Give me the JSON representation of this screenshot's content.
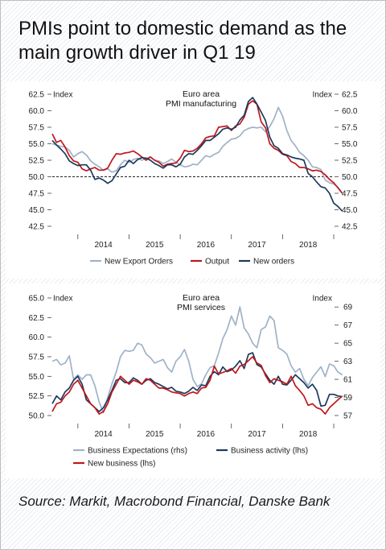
{
  "title": "PMIs point to domestic demand as the main growth driver in Q1 19",
  "source": "Source: Markit, Macrobond Financial, Danske Bank",
  "colors": {
    "light_blue": "#9fb2c8",
    "red": "#c0171c",
    "navy": "#1c3a5c"
  },
  "chart_data": [
    {
      "type": "line",
      "title": "Euro area\nPMI manufacturing",
      "left_axis_label": "Index",
      "right_axis_label": "Index",
      "ylim": [
        42.5,
        62.5
      ],
      "y_ticks": [
        "62.5",
        "60.0",
        "57.5",
        "55.0",
        "52.5",
        "50.0",
        "47.5",
        "45.0",
        "42.5"
      ],
      "x_ticks": [
        "2014",
        "2015",
        "2016",
        "2017",
        "2018"
      ],
      "x_range": [
        "2013-07",
        "2019-01"
      ],
      "reference_line": 50.0,
      "legend": [
        "New Export Orders",
        "Output",
        "New orders"
      ],
      "series": [
        {
          "name": "New Export Orders",
          "color": "#9fb2c8",
          "values": [
            55.0,
            54.8,
            54.6,
            54.5,
            54.0,
            53.0,
            53.5,
            53.8,
            53.3,
            52.4,
            51.9,
            51.5,
            51.0,
            51.2,
            50.7,
            50.9,
            51.8,
            52.5,
            52.2,
            52.6,
            52.8,
            52.5,
            52.8,
            53.0,
            52.5,
            52.4,
            52.0,
            52.3,
            52.7,
            52.2,
            51.8,
            51.5,
            51.6,
            51.9,
            51.8,
            52.5,
            53.2,
            53.0,
            53.4,
            53.7,
            54.6,
            55.2,
            55.7,
            55.8,
            56.2,
            57.0,
            57.3,
            57.5,
            57.4,
            57.5,
            56.8,
            57.6,
            58.8,
            60.5,
            59.2,
            57.0,
            55.5,
            54.7,
            53.7,
            53.2,
            52.5,
            51.5,
            51.4,
            51.1,
            49.5,
            49.1,
            48.9,
            48.4,
            47.5
          ]
        },
        {
          "name": "Output",
          "color": "#c0171c",
          "values": [
            56.5,
            55.2,
            55.5,
            54.5,
            53.2,
            52.4,
            52.2,
            51.2,
            50.9,
            51.2,
            51.4,
            51.0,
            51.0,
            51.3,
            52.5,
            53.5,
            53.4,
            53.6,
            53.7,
            53.9,
            53.5,
            53.0,
            52.5,
            53.0,
            52.5,
            52.2,
            51.6,
            51.9,
            52.0,
            52.1,
            52.8,
            54.0,
            53.8,
            53.9,
            54.3,
            55.0,
            55.9,
            56.1,
            56.2,
            57.5,
            57.6,
            57.7,
            57.0,
            57.7,
            58.0,
            59.0,
            61.0,
            61.5,
            61.0,
            58.3,
            57.4,
            55.0,
            54.3,
            54.0,
            53.4,
            53.2,
            52.3,
            52.0,
            51.4,
            51.4,
            51.2,
            50.9,
            51.0,
            50.8,
            50.3,
            49.6,
            49.1,
            48.3,
            47.5
          ]
        },
        {
          "name": "New orders",
          "color": "#1c3a5c",
          "values": [
            55.5,
            54.8,
            54.2,
            53.5,
            52.4,
            52.0,
            51.7,
            51.8,
            51.8,
            51.0,
            49.6,
            49.8,
            49.5,
            49.0,
            49.4,
            50.4,
            51.4,
            51.6,
            52.5,
            52.0,
            52.6,
            52.9,
            52.8,
            52.5,
            52.0,
            51.7,
            51.3,
            51.8,
            51.8,
            51.5,
            51.9,
            53.0,
            53.5,
            53.4,
            54.0,
            54.7,
            55.5,
            55.5,
            56.0,
            56.5,
            57.2,
            57.4,
            57.2,
            57.5,
            58.6,
            59.3,
            61.4,
            62.0,
            61.0,
            59.8,
            58.5,
            56.0,
            54.7,
            54.3,
            53.5,
            53.3,
            53.0,
            52.8,
            52.7,
            52.5,
            50.5,
            50.0,
            49.2,
            48.5,
            48.3,
            47.5,
            46.0,
            45.5,
            44.8
          ]
        }
      ]
    },
    {
      "type": "line",
      "title": "Euro area\nPMI services",
      "left_axis_label": "Index",
      "right_axis_label": "Index",
      "ylim": [
        50.0,
        65.0
      ],
      "y_ticks": [
        "65.0",
        "62.5",
        "60.0",
        "57.5",
        "55.0",
        "52.5",
        "50.0"
      ],
      "ylim_right": [
        57,
        70
      ],
      "y_ticks_right": [
        "69",
        "67",
        "65",
        "63",
        "61",
        "59",
        "57"
      ],
      "x_ticks": [
        "2014",
        "2015",
        "2016",
        "2017",
        "2018"
      ],
      "x_range": [
        "2013-07",
        "2019-01"
      ],
      "legend": [
        "Business Expectations (rhs)",
        "Business activity (lhs)",
        "New business (lhs)"
      ],
      "series": [
        {
          "name": "Business Expectations (rhs)",
          "axis": "right",
          "color": "#9fb2c8",
          "values": [
            63.0,
            63.2,
            62.6,
            62.8,
            63.6,
            61.0,
            61.5,
            61.0,
            61.5,
            61.5,
            60.3,
            58.5,
            57.3,
            59.0,
            60.5,
            61.8,
            63.5,
            64.2,
            64.1,
            64.2,
            65.0,
            64.8,
            63.8,
            63.4,
            62.8,
            63.0,
            63.2,
            62.3,
            61.8,
            63.0,
            63.5,
            64.3,
            63.0,
            61.0,
            60.2,
            60.5,
            61.5,
            62.3,
            62.5,
            63.9,
            65.5,
            66.5,
            68.0,
            67.0,
            69.0,
            66.7,
            66.0,
            65.0,
            64.5,
            66.5,
            66.8,
            68.0,
            67.5,
            64.5,
            64.2,
            63.8,
            62.5,
            61.8,
            62.2,
            61.0,
            60.3,
            61.2,
            61.8,
            62.4,
            61.3,
            62.7,
            62.5,
            61.8,
            61.5
          ]
        },
        {
          "name": "Business activity (lhs)",
          "axis": "left",
          "color": "#1c3a5c",
          "values": [
            51.5,
            52.5,
            52.0,
            53.0,
            53.5,
            54.5,
            55.0,
            54.0,
            52.0,
            51.5,
            51.0,
            50.5,
            51.0,
            52.0,
            53.2,
            54.5,
            54.7,
            54.2,
            54.2,
            54.8,
            54.5,
            54.0,
            54.5,
            54.7,
            54.2,
            54.0,
            53.7,
            53.4,
            53.6,
            53.1,
            53.0,
            52.8,
            53.1,
            53.6,
            53.2,
            53.9,
            53.8,
            55.0,
            55.6,
            55.2,
            56.2,
            55.6,
            55.8,
            56.3,
            57.0,
            56.0,
            57.8,
            58.0,
            56.5,
            56.2,
            55.3,
            54.5,
            54.0,
            55.0,
            54.0,
            53.9,
            54.5,
            55.2,
            54.7,
            54.2,
            53.5,
            54.0,
            53.2,
            51.2,
            51.3,
            52.7,
            52.7,
            52.5,
            52.4
          ]
        },
        {
          "name": "New business (lhs)",
          "axis": "left",
          "color": "#c0171c",
          "values": [
            50.5,
            51.5,
            51.7,
            52.5,
            53.0,
            54.0,
            54.5,
            53.5,
            52.5,
            51.5,
            51.0,
            50.2,
            50.5,
            51.5,
            53.0,
            54.0,
            55.0,
            54.5,
            54.0,
            54.5,
            54.3,
            54.0,
            54.7,
            54.5,
            54.0,
            53.5,
            53.5,
            53.3,
            53.0,
            52.9,
            52.8,
            52.5,
            52.8,
            53.0,
            52.8,
            53.5,
            53.6,
            54.5,
            56.3,
            55.3,
            55.5,
            55.7,
            56.0,
            55.4,
            56.3,
            56.5,
            57.0,
            57.5,
            56.7,
            56.4,
            55.1,
            54.2,
            54.7,
            54.5,
            54.3,
            54.0,
            55.0,
            53.8,
            53.2,
            52.5,
            51.3,
            51.5,
            51.0,
            50.8,
            50.2,
            51.0,
            51.5,
            52.0,
            52.5
          ]
        }
      ]
    }
  ]
}
